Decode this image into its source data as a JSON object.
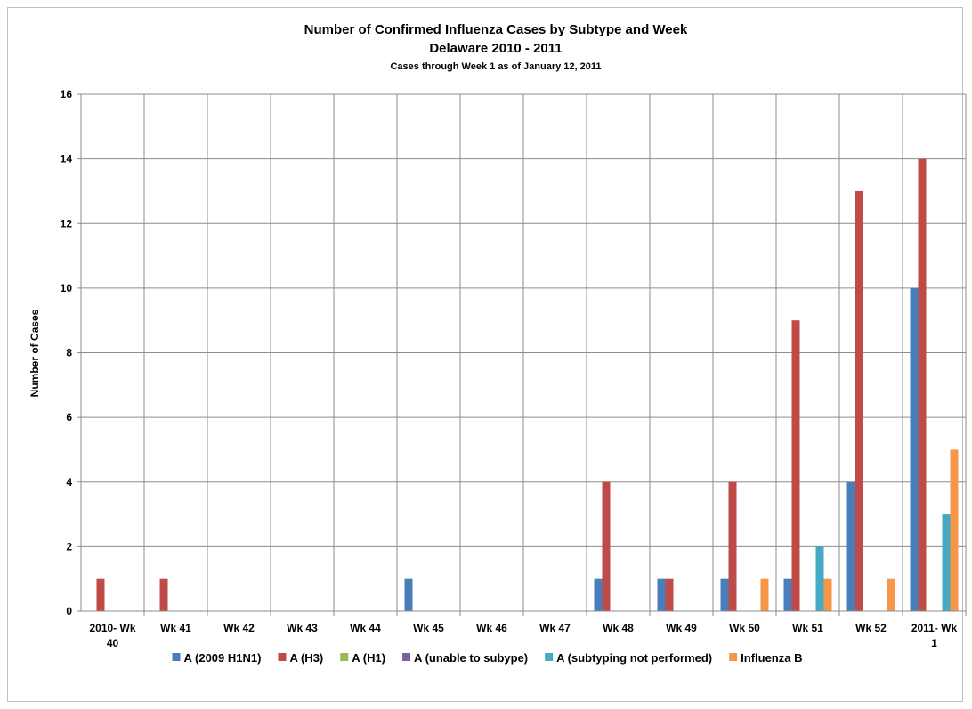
{
  "chart_data": {
    "type": "bar",
    "title": "Number of Confirmed Influenza Cases by Subtype and Week",
    "subtitle": "Delaware 2010 - 2011",
    "note": "Cases through Week 1 as of January 12, 2011",
    "ylabel": "Number of Cases",
    "xlabel": "",
    "ylim": [
      0,
      16
    ],
    "yticks": [
      0,
      2,
      4,
      6,
      8,
      10,
      12,
      14,
      16
    ],
    "grid": true,
    "legend_position": "bottom",
    "categories": [
      "2010- Wk 40",
      "Wk 41",
      "Wk 42",
      "Wk 43",
      "Wk 44",
      "Wk 45",
      "Wk 46",
      "Wk 47",
      "Wk 48",
      "Wk 49",
      "Wk 50",
      "Wk 51",
      "Wk 52",
      "2011- Wk 1"
    ],
    "category_lines": [
      [
        "2010- Wk",
        "40"
      ],
      [
        "Wk 41"
      ],
      [
        "Wk 42"
      ],
      [
        "Wk 43"
      ],
      [
        "Wk 44"
      ],
      [
        "Wk 45"
      ],
      [
        "Wk 46"
      ],
      [
        "Wk 47"
      ],
      [
        "Wk 48"
      ],
      [
        "Wk 49"
      ],
      [
        "Wk 50"
      ],
      [
        "Wk 51"
      ],
      [
        "Wk 52"
      ],
      [
        "2011- Wk",
        "1"
      ]
    ],
    "series": [
      {
        "name": "A (2009 H1N1)",
        "color": "#4a7ebb",
        "values": [
          0,
          0,
          0,
          0,
          0,
          1,
          0,
          0,
          1,
          1,
          1,
          1,
          4,
          10
        ]
      },
      {
        "name": "A (H3)",
        "color": "#be4b48",
        "values": [
          1,
          1,
          0,
          0,
          0,
          0,
          0,
          0,
          4,
          1,
          4,
          9,
          13,
          14
        ]
      },
      {
        "name": "A (H1)",
        "color": "#98b954",
        "values": [
          0,
          0,
          0,
          0,
          0,
          0,
          0,
          0,
          0,
          0,
          0,
          0,
          0,
          0
        ]
      },
      {
        "name": "A (unable to subype)",
        "color": "#7d60a0",
        "values": [
          0,
          0,
          0,
          0,
          0,
          0,
          0,
          0,
          0,
          0,
          0,
          0,
          0,
          0
        ]
      },
      {
        "name": "A (subtyping not performed)",
        "color": "#46aac5",
        "values": [
          0,
          0,
          0,
          0,
          0,
          0,
          0,
          0,
          0,
          0,
          0,
          2,
          0,
          3
        ]
      },
      {
        "name": "Influenza B",
        "color": "#f79646",
        "values": [
          0,
          0,
          0,
          0,
          0,
          0,
          0,
          0,
          0,
          0,
          1,
          1,
          1,
          5
        ]
      }
    ]
  }
}
